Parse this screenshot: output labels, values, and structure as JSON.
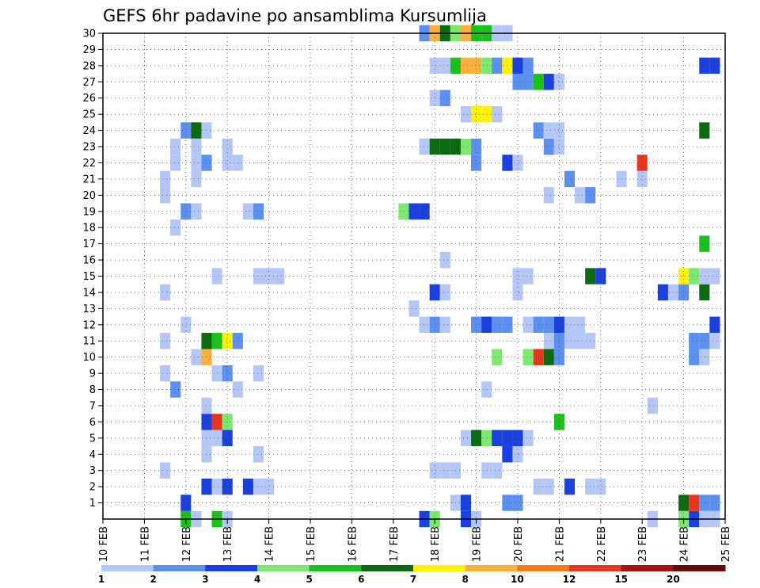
{
  "chart_data": {
    "type": "heatmap",
    "title": "GEFS 6hr padavine po ansamblima Kursumlija",
    "xlabel": "",
    "ylabel": "",
    "x_ticks": [
      "10 FEB",
      "11 FEB",
      "12 FEB",
      "13 FEB",
      "14 FEB",
      "15 FEB",
      "16 FEB",
      "17 FEB",
      "18 FEB",
      "19 FEB",
      "20 FEB",
      "21 FEB",
      "22 FEB",
      "23 FEB",
      "24 FEB",
      "25 FEB"
    ],
    "y_ticks": [
      "1",
      "2",
      "3",
      "4",
      "5",
      "6",
      "7",
      "8",
      "9",
      "10",
      "11",
      "12",
      "13",
      "14",
      "15",
      "16",
      "17",
      "18",
      "19",
      "20",
      "21",
      "22",
      "23",
      "24",
      "25",
      "26",
      "27",
      "28",
      "29",
      "30"
    ],
    "x_range_days": [
      10,
      25
    ],
    "y_range": [
      0,
      30
    ],
    "grid": true,
    "colorbar": {
      "labels": [
        "1",
        "2",
        "3",
        "4",
        "5",
        "6",
        "7",
        "8",
        "10",
        "12",
        "15",
        "20"
      ],
      "colors": [
        "#b3c6f5",
        "#5b8ff0",
        "#1a40e0",
        "#7de870",
        "#19c219",
        "#0b6b10",
        "#fff200",
        "#fcb03b",
        "#f57a19",
        "#e8361e",
        "#a41212",
        "#6b0a0a"
      ]
    },
    "cells": [
      {
        "t": 12.0,
        "m": 0,
        "v": 5
      },
      {
        "t": 12.25,
        "m": 0,
        "v": 1
      },
      {
        "t": 12.75,
        "m": 0,
        "v": 5
      },
      {
        "t": 13.0,
        "m": 0,
        "v": 1
      },
      {
        "t": 17.75,
        "m": 0,
        "v": 3
      },
      {
        "t": 18.0,
        "m": 0,
        "v": 4
      },
      {
        "t": 18.75,
        "m": 0,
        "v": 3
      },
      {
        "t": 19.0,
        "m": 0,
        "v": 1
      },
      {
        "t": 23.25,
        "m": 0,
        "v": 1
      },
      {
        "t": 24.0,
        "m": 0,
        "v": 4
      },
      {
        "t": 24.25,
        "m": 0,
        "v": 3
      },
      {
        "t": 24.5,
        "m": 0,
        "v": 1
      },
      {
        "t": 24.75,
        "m": 0,
        "v": 1
      },
      {
        "t": 12.0,
        "m": 1,
        "v": 3
      },
      {
        "t": 18.5,
        "m": 1,
        "v": 1
      },
      {
        "t": 18.75,
        "m": 1,
        "v": 3
      },
      {
        "t": 19.75,
        "m": 1,
        "v": 2
      },
      {
        "t": 20.0,
        "m": 1,
        "v": 2
      },
      {
        "t": 24.0,
        "m": 1,
        "v": 6
      },
      {
        "t": 24.25,
        "m": 1,
        "v": 10
      },
      {
        "t": 24.5,
        "m": 1,
        "v": 2
      },
      {
        "t": 24.75,
        "m": 1,
        "v": 2
      },
      {
        "t": 12.5,
        "m": 2,
        "v": 3
      },
      {
        "t": 12.75,
        "m": 2,
        "v": 1
      },
      {
        "t": 13.0,
        "m": 2,
        "v": 3
      },
      {
        "t": 13.5,
        "m": 2,
        "v": 3
      },
      {
        "t": 13.75,
        "m": 2,
        "v": 1
      },
      {
        "t": 14.0,
        "m": 2,
        "v": 1
      },
      {
        "t": 20.5,
        "m": 2,
        "v": 1
      },
      {
        "t": 20.75,
        "m": 2,
        "v": 1
      },
      {
        "t": 21.25,
        "m": 2,
        "v": 3
      },
      {
        "t": 21.75,
        "m": 2,
        "v": 1
      },
      {
        "t": 22.0,
        "m": 2,
        "v": 1
      },
      {
        "t": 11.5,
        "m": 3,
        "v": 1
      },
      {
        "t": 18.0,
        "m": 3,
        "v": 1
      },
      {
        "t": 18.25,
        "m": 3,
        "v": 1
      },
      {
        "t": 18.5,
        "m": 3,
        "v": 1
      },
      {
        "t": 19.25,
        "m": 3,
        "v": 1
      },
      {
        "t": 19.5,
        "m": 3,
        "v": 1
      },
      {
        "t": 12.5,
        "m": 4,
        "v": 1
      },
      {
        "t": 13.75,
        "m": 4,
        "v": 1
      },
      {
        "t": 19.75,
        "m": 4,
        "v": 3
      },
      {
        "t": 20.0,
        "m": 4,
        "v": 1
      },
      {
        "t": 12.5,
        "m": 5,
        "v": 1
      },
      {
        "t": 12.75,
        "m": 5,
        "v": 1
      },
      {
        "t": 13.0,
        "m": 5,
        "v": 3
      },
      {
        "t": 18.75,
        "m": 5,
        "v": 1
      },
      {
        "t": 19.0,
        "m": 5,
        "v": 6
      },
      {
        "t": 19.25,
        "m": 5,
        "v": 4
      },
      {
        "t": 19.5,
        "m": 5,
        "v": 3
      },
      {
        "t": 19.75,
        "m": 5,
        "v": 3
      },
      {
        "t": 20.0,
        "m": 5,
        "v": 3
      },
      {
        "t": 20.25,
        "m": 5,
        "v": 1
      },
      {
        "t": 12.5,
        "m": 6,
        "v": 3
      },
      {
        "t": 12.75,
        "m": 6,
        "v": 10
      },
      {
        "t": 13.0,
        "m": 6,
        "v": 4
      },
      {
        "t": 21.0,
        "m": 6,
        "v": 5
      },
      {
        "t": 12.5,
        "m": 7,
        "v": 1
      },
      {
        "t": 23.25,
        "m": 7,
        "v": 1
      },
      {
        "t": 11.75,
        "m": 8,
        "v": 2
      },
      {
        "t": 13.25,
        "m": 8,
        "v": 1
      },
      {
        "t": 19.25,
        "m": 8,
        "v": 1
      },
      {
        "t": 11.5,
        "m": 9,
        "v": 1
      },
      {
        "t": 12.75,
        "m": 9,
        "v": 1
      },
      {
        "t": 13.0,
        "m": 9,
        "v": 2
      },
      {
        "t": 13.75,
        "m": 9,
        "v": 1
      },
      {
        "t": 12.25,
        "m": 10,
        "v": 1
      },
      {
        "t": 12.5,
        "m": 10,
        "v": 8
      },
      {
        "t": 19.5,
        "m": 10,
        "v": 4
      },
      {
        "t": 20.25,
        "m": 10,
        "v": 4
      },
      {
        "t": 20.5,
        "m": 10,
        "v": 10
      },
      {
        "t": 20.75,
        "m": 10,
        "v": 6
      },
      {
        "t": 21.0,
        "m": 10,
        "v": 2
      },
      {
        "t": 24.25,
        "m": 10,
        "v": 2
      },
      {
        "t": 24.5,
        "m": 10,
        "v": 1
      },
      {
        "t": 11.5,
        "m": 11,
        "v": 1
      },
      {
        "t": 12.5,
        "m": 11,
        "v": 6
      },
      {
        "t": 12.75,
        "m": 11,
        "v": 5
      },
      {
        "t": 13.0,
        "m": 11,
        "v": 7
      },
      {
        "t": 13.25,
        "m": 11,
        "v": 2
      },
      {
        "t": 20.75,
        "m": 11,
        "v": 1
      },
      {
        "t": 21.0,
        "m": 11,
        "v": 2
      },
      {
        "t": 21.25,
        "m": 11,
        "v": 1
      },
      {
        "t": 21.5,
        "m": 11,
        "v": 1
      },
      {
        "t": 21.75,
        "m": 11,
        "v": 1
      },
      {
        "t": 24.25,
        "m": 11,
        "v": 2
      },
      {
        "t": 24.5,
        "m": 11,
        "v": 2
      },
      {
        "t": 24.75,
        "m": 11,
        "v": 1
      },
      {
        "t": 12.0,
        "m": 12,
        "v": 1
      },
      {
        "t": 17.75,
        "m": 12,
        "v": 1
      },
      {
        "t": 18.0,
        "m": 12,
        "v": 2
      },
      {
        "t": 18.25,
        "m": 12,
        "v": 1
      },
      {
        "t": 19.0,
        "m": 12,
        "v": 2
      },
      {
        "t": 19.25,
        "m": 12,
        "v": 3
      },
      {
        "t": 19.5,
        "m": 12,
        "v": 2
      },
      {
        "t": 19.75,
        "m": 12,
        "v": 2
      },
      {
        "t": 20.25,
        "m": 12,
        "v": 1
      },
      {
        "t": 20.5,
        "m": 12,
        "v": 2
      },
      {
        "t": 20.75,
        "m": 12,
        "v": 2
      },
      {
        "t": 21.0,
        "m": 12,
        "v": 3
      },
      {
        "t": 21.25,
        "m": 12,
        "v": 1
      },
      {
        "t": 21.5,
        "m": 12,
        "v": 1
      },
      {
        "t": 24.75,
        "m": 12,
        "v": 3
      },
      {
        "t": 17.5,
        "m": 13,
        "v": 1
      },
      {
        "t": 11.5,
        "m": 14,
        "v": 1
      },
      {
        "t": 18.0,
        "m": 14,
        "v": 3
      },
      {
        "t": 18.25,
        "m": 14,
        "v": 1
      },
      {
        "t": 20.0,
        "m": 14,
        "v": 1
      },
      {
        "t": 23.5,
        "m": 14,
        "v": 3
      },
      {
        "t": 23.75,
        "m": 14,
        "v": 1
      },
      {
        "t": 24.0,
        "m": 14,
        "v": 2
      },
      {
        "t": 24.5,
        "m": 14,
        "v": 6
      },
      {
        "t": 12.75,
        "m": 15,
        "v": 1
      },
      {
        "t": 13.75,
        "m": 15,
        "v": 1
      },
      {
        "t": 14.0,
        "m": 15,
        "v": 1
      },
      {
        "t": 14.25,
        "m": 15,
        "v": 1
      },
      {
        "t": 20.0,
        "m": 15,
        "v": 1
      },
      {
        "t": 20.25,
        "m": 15,
        "v": 1
      },
      {
        "t": 21.75,
        "m": 15,
        "v": 6
      },
      {
        "t": 22.0,
        "m": 15,
        "v": 3
      },
      {
        "t": 24.0,
        "m": 15,
        "v": 7
      },
      {
        "t": 24.25,
        "m": 15,
        "v": 4
      },
      {
        "t": 24.5,
        "m": 15,
        "v": 1
      },
      {
        "t": 24.75,
        "m": 15,
        "v": 1
      },
      {
        "t": 18.25,
        "m": 16,
        "v": 1
      },
      {
        "t": 24.5,
        "m": 17,
        "v": 5
      },
      {
        "t": 11.75,
        "m": 18,
        "v": 1
      },
      {
        "t": 12.0,
        "m": 19,
        "v": 2
      },
      {
        "t": 12.25,
        "m": 19,
        "v": 1
      },
      {
        "t": 13.5,
        "m": 19,
        "v": 1
      },
      {
        "t": 13.75,
        "m": 19,
        "v": 2
      },
      {
        "t": 17.25,
        "m": 19,
        "v": 4
      },
      {
        "t": 17.5,
        "m": 19,
        "v": 3
      },
      {
        "t": 17.75,
        "m": 19,
        "v": 3
      },
      {
        "t": 11.5,
        "m": 20,
        "v": 1
      },
      {
        "t": 20.75,
        "m": 20,
        "v": 1
      },
      {
        "t": 21.5,
        "m": 20,
        "v": 1
      },
      {
        "t": 21.75,
        "m": 20,
        "v": 2
      },
      {
        "t": 11.5,
        "m": 21,
        "v": 1
      },
      {
        "t": 12.25,
        "m": 21,
        "v": 1
      },
      {
        "t": 21.25,
        "m": 21,
        "v": 2
      },
      {
        "t": 22.5,
        "m": 21,
        "v": 1
      },
      {
        "t": 23.0,
        "m": 21,
        "v": 1
      },
      {
        "t": 11.75,
        "m": 22,
        "v": 1
      },
      {
        "t": 12.25,
        "m": 22,
        "v": 1
      },
      {
        "t": 12.5,
        "m": 22,
        "v": 2
      },
      {
        "t": 13.0,
        "m": 22,
        "v": 1
      },
      {
        "t": 13.25,
        "m": 22,
        "v": 1
      },
      {
        "t": 19.0,
        "m": 22,
        "v": 2
      },
      {
        "t": 19.75,
        "m": 22,
        "v": 3
      },
      {
        "t": 20.0,
        "m": 22,
        "v": 1
      },
      {
        "t": 23.0,
        "m": 22,
        "v": 10
      },
      {
        "t": 11.75,
        "m": 23,
        "v": 1
      },
      {
        "t": 12.25,
        "m": 23,
        "v": 1
      },
      {
        "t": 13.0,
        "m": 23,
        "v": 1
      },
      {
        "t": 17.75,
        "m": 23,
        "v": 1
      },
      {
        "t": 18.0,
        "m": 23,
        "v": 6
      },
      {
        "t": 18.25,
        "m": 23,
        "v": 6
      },
      {
        "t": 18.5,
        "m": 23,
        "v": 6
      },
      {
        "t": 18.75,
        "m": 23,
        "v": 4
      },
      {
        "t": 19.0,
        "m": 23,
        "v": 2
      },
      {
        "t": 20.75,
        "m": 23,
        "v": 2
      },
      {
        "t": 21.0,
        "m": 23,
        "v": 1
      },
      {
        "t": 12.0,
        "m": 24,
        "v": 2
      },
      {
        "t": 12.25,
        "m": 24,
        "v": 6
      },
      {
        "t": 12.5,
        "m": 24,
        "v": 1
      },
      {
        "t": 20.5,
        "m": 24,
        "v": 2
      },
      {
        "t": 20.75,
        "m": 24,
        "v": 1
      },
      {
        "t": 21.0,
        "m": 24,
        "v": 1
      },
      {
        "t": 24.5,
        "m": 24,
        "v": 6
      },
      {
        "t": 18.75,
        "m": 25,
        "v": 1
      },
      {
        "t": 19.0,
        "m": 25,
        "v": 7
      },
      {
        "t": 19.25,
        "m": 25,
        "v": 7
      },
      {
        "t": 19.5,
        "m": 25,
        "v": 1
      },
      {
        "t": 18.0,
        "m": 26,
        "v": 1
      },
      {
        "t": 18.25,
        "m": 26,
        "v": 2
      },
      {
        "t": 20.0,
        "m": 27,
        "v": 2
      },
      {
        "t": 20.25,
        "m": 27,
        "v": 2
      },
      {
        "t": 20.5,
        "m": 27,
        "v": 5
      },
      {
        "t": 20.75,
        "m": 27,
        "v": 3
      },
      {
        "t": 21.0,
        "m": 27,
        "v": 1
      },
      {
        "t": 18.0,
        "m": 28,
        "v": 1
      },
      {
        "t": 18.25,
        "m": 28,
        "v": 1
      },
      {
        "t": 18.5,
        "m": 28,
        "v": 5
      },
      {
        "t": 18.75,
        "m": 28,
        "v": 8
      },
      {
        "t": 19.0,
        "m": 28,
        "v": 8
      },
      {
        "t": 19.25,
        "m": 28,
        "v": 4
      },
      {
        "t": 19.5,
        "m": 28,
        "v": 2
      },
      {
        "t": 19.75,
        "m": 28,
        "v": 7
      },
      {
        "t": 20.0,
        "m": 28,
        "v": 3
      },
      {
        "t": 20.25,
        "m": 28,
        "v": 2
      },
      {
        "t": 24.5,
        "m": 28,
        "v": 3
      },
      {
        "t": 24.75,
        "m": 28,
        "v": 3
      },
      {
        "t": 17.75,
        "m": 30,
        "v": 2
      },
      {
        "t": 18.0,
        "m": 30,
        "v": 8
      },
      {
        "t": 18.25,
        "m": 30,
        "v": 6
      },
      {
        "t": 18.5,
        "m": 30,
        "v": 4
      },
      {
        "t": 18.75,
        "m": 30,
        "v": 8
      },
      {
        "t": 19.0,
        "m": 30,
        "v": 5
      },
      {
        "t": 19.25,
        "m": 30,
        "v": 5
      },
      {
        "t": 19.5,
        "m": 30,
        "v": 1
      },
      {
        "t": 19.75,
        "m": 30,
        "v": 1
      }
    ]
  }
}
